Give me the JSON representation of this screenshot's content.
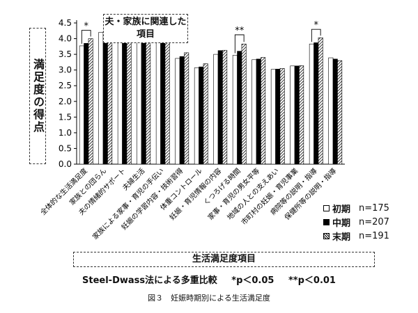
{
  "y_axis_label": "満足度の得点",
  "group_label": "夫・家族に関連した項目",
  "x_axis_title": "生活満足度項目",
  "note_method": "Steel-Dwass法による多重比較",
  "note_p05": "*p＜0.05",
  "note_p01": "**p＜0.01",
  "caption": "図３　妊娠時期別による生活満足度",
  "significance_marks": [
    "*",
    "**",
    "*"
  ],
  "legend": [
    {
      "name": "初期",
      "n": "n=175"
    },
    {
      "name": "中期",
      "n": "n=207"
    },
    {
      "name": "末期",
      "n": "n=191"
    }
  ],
  "chart_data": {
    "type": "bar",
    "title": "",
    "xlabel": "生活満足度項目",
    "ylabel": "満足度の得点",
    "ylim": [
      0,
      4.5
    ],
    "yticks": [
      "0.0",
      "0.5",
      "1.0",
      "1.5",
      "2.0",
      "2.5",
      "3.0",
      "3.5",
      "4.0",
      "4.5"
    ],
    "categories": [
      "全体的な生活満足度",
      "家族との団らん",
      "夫の情緒的サポート",
      "夫婦生活",
      "家族による家事・育児の手伝い",
      "妊娠の学習内容・技術習得",
      "体重コントロール",
      "妊娠・育児情報の内容",
      "くつろげる時間",
      "家事・育児の男女平等",
      "地域の人との支えあい",
      "市町村の妊娠・育児事業",
      "病院等の説明・指導",
      "保健所等の説明・指導"
    ],
    "series": [
      {
        "name": "初期",
        "values": [
          3.77,
          4.2,
          4.21,
          4.03,
          4.0,
          3.37,
          3.07,
          3.5,
          3.47,
          3.33,
          3.02,
          3.13,
          3.83,
          3.39
        ]
      },
      {
        "name": "中期",
        "values": [
          3.85,
          4.22,
          4.1,
          3.97,
          3.97,
          3.43,
          3.1,
          3.62,
          3.6,
          3.35,
          3.03,
          3.13,
          3.87,
          3.35
        ]
      },
      {
        "name": "末期",
        "values": [
          4.0,
          4.21,
          4.07,
          3.93,
          3.93,
          3.55,
          3.2,
          3.63,
          3.83,
          3.4,
          3.05,
          3.14,
          4.03,
          3.3
        ]
      }
    ],
    "significance": [
      {
        "category": 0,
        "mark": "*"
      },
      {
        "category": 8,
        "mark": "**"
      },
      {
        "category": 12,
        "mark": "*"
      }
    ],
    "legend_position": "right-bottom",
    "grid": false
  }
}
